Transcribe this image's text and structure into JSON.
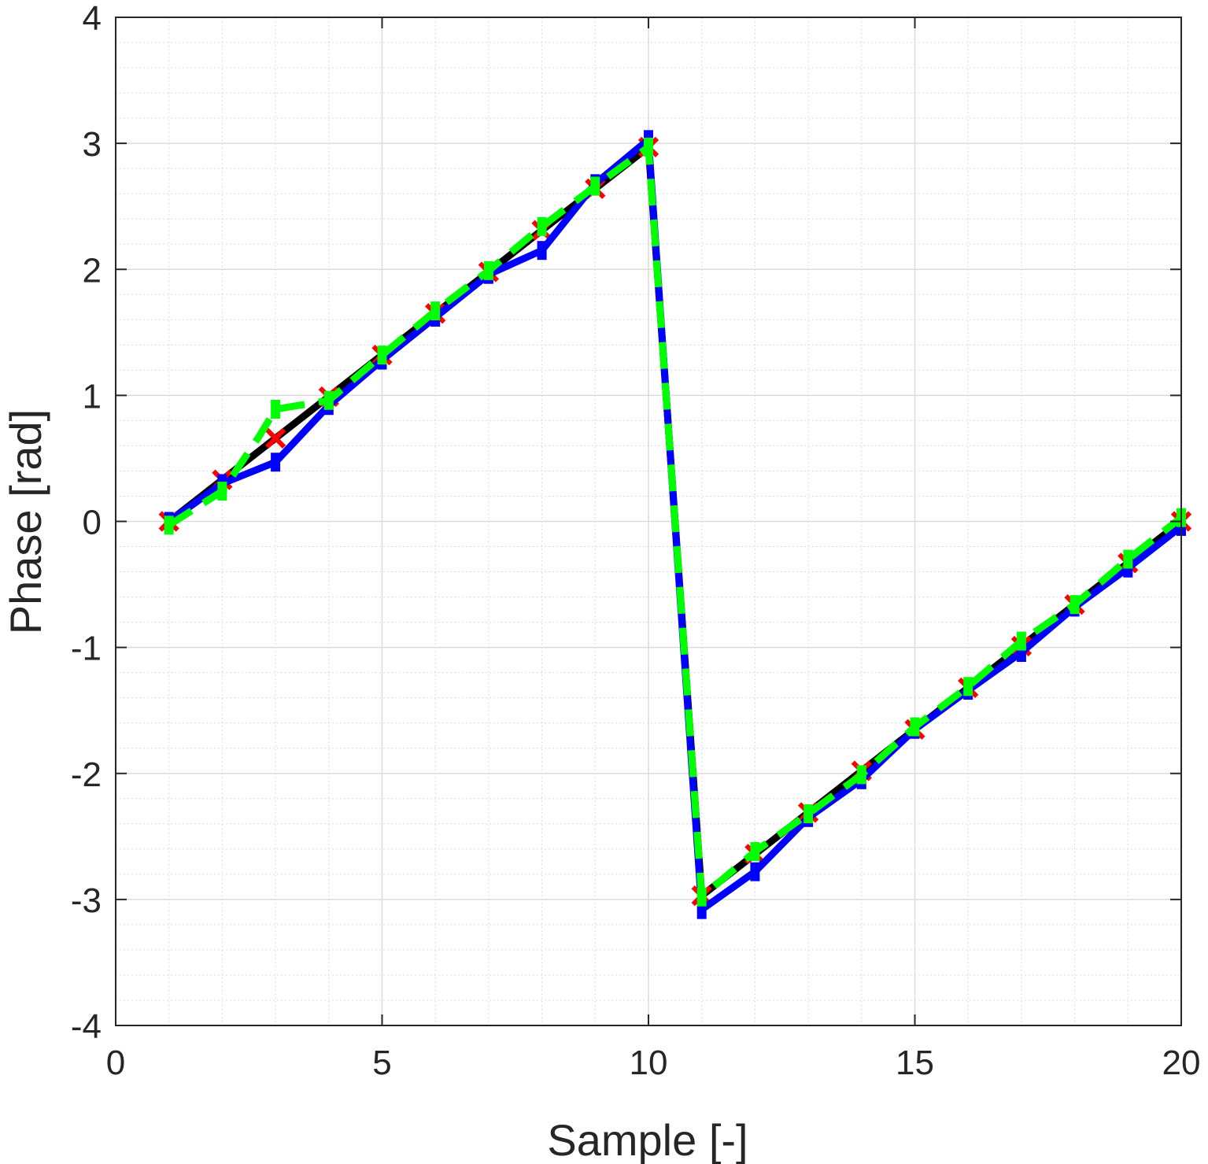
{
  "chart_data": {
    "type": "line",
    "title": "",
    "xlabel": "Sample [-]",
    "ylabel": "Phase [rad]",
    "xlim": [
      0,
      20
    ],
    "ylim": [
      -4,
      4
    ],
    "xticks": [
      0,
      5,
      10,
      15,
      20
    ],
    "yticks": [
      -4,
      -3,
      -2,
      -1,
      0,
      1,
      2,
      3,
      4
    ],
    "grid": true,
    "minor_grid": true,
    "colors": {
      "reference": "#000000",
      "markers": "#ff0000",
      "blue": "#0000ff",
      "green": "#00ff00",
      "grid": "#dcdcdc",
      "axis": "#262626"
    },
    "series": [
      {
        "color": "#000000",
        "style": "solid",
        "x": [
          1,
          2,
          3,
          4,
          5,
          6,
          7,
          8,
          9,
          10,
          11,
          12,
          13,
          14,
          15,
          16,
          17,
          18,
          19,
          20
        ],
        "y": [
          0.0,
          0.33,
          0.66,
          0.99,
          1.32,
          1.65,
          1.98,
          2.31,
          2.64,
          2.97,
          -2.97,
          -2.64,
          -2.31,
          -1.98,
          -1.65,
          -1.32,
          -0.99,
          -0.66,
          -0.33,
          0.0
        ]
      },
      {
        "color": "#ff0000",
        "style": "x-markers",
        "x": [
          1,
          2,
          3,
          4,
          5,
          6,
          7,
          8,
          9,
          10,
          11,
          12,
          13,
          14,
          15,
          16,
          17,
          18,
          19,
          20
        ],
        "y": [
          0.0,
          0.33,
          0.66,
          0.99,
          1.32,
          1.65,
          1.98,
          2.31,
          2.64,
          2.97,
          -2.97,
          -2.64,
          -2.31,
          -1.98,
          -1.65,
          -1.32,
          -0.99,
          -0.66,
          -0.33,
          0.0
        ]
      },
      {
        "color": "#0000ff",
        "style": "solid-square-markers",
        "x": [
          1,
          2,
          3,
          4,
          5,
          6,
          7,
          8,
          9,
          10,
          11,
          12,
          13,
          14,
          15,
          16,
          17,
          18,
          19,
          20
        ],
        "y": [
          0.0,
          0.3,
          0.47,
          0.92,
          1.28,
          1.62,
          1.96,
          2.15,
          2.68,
          3.03,
          -3.08,
          -2.78,
          -2.35,
          -2.05,
          -1.65,
          -1.34,
          -1.04,
          -0.68,
          -0.37,
          -0.04
        ]
      },
      {
        "color": "#00ff00",
        "style": "dashed-square-markers",
        "x": [
          1,
          2,
          2.7,
          3,
          4,
          5,
          6,
          7,
          8,
          9,
          10,
          11,
          12,
          13,
          14,
          15,
          16,
          17,
          18,
          19,
          20
        ],
        "y": [
          -0.03,
          0.24,
          0.68,
          0.89,
          0.96,
          1.32,
          1.67,
          1.99,
          2.34,
          2.66,
          2.97,
          -2.98,
          -2.62,
          -2.32,
          -2.01,
          -1.63,
          -1.31,
          -0.95,
          -0.66,
          -0.3,
          0.03
        ]
      }
    ]
  }
}
